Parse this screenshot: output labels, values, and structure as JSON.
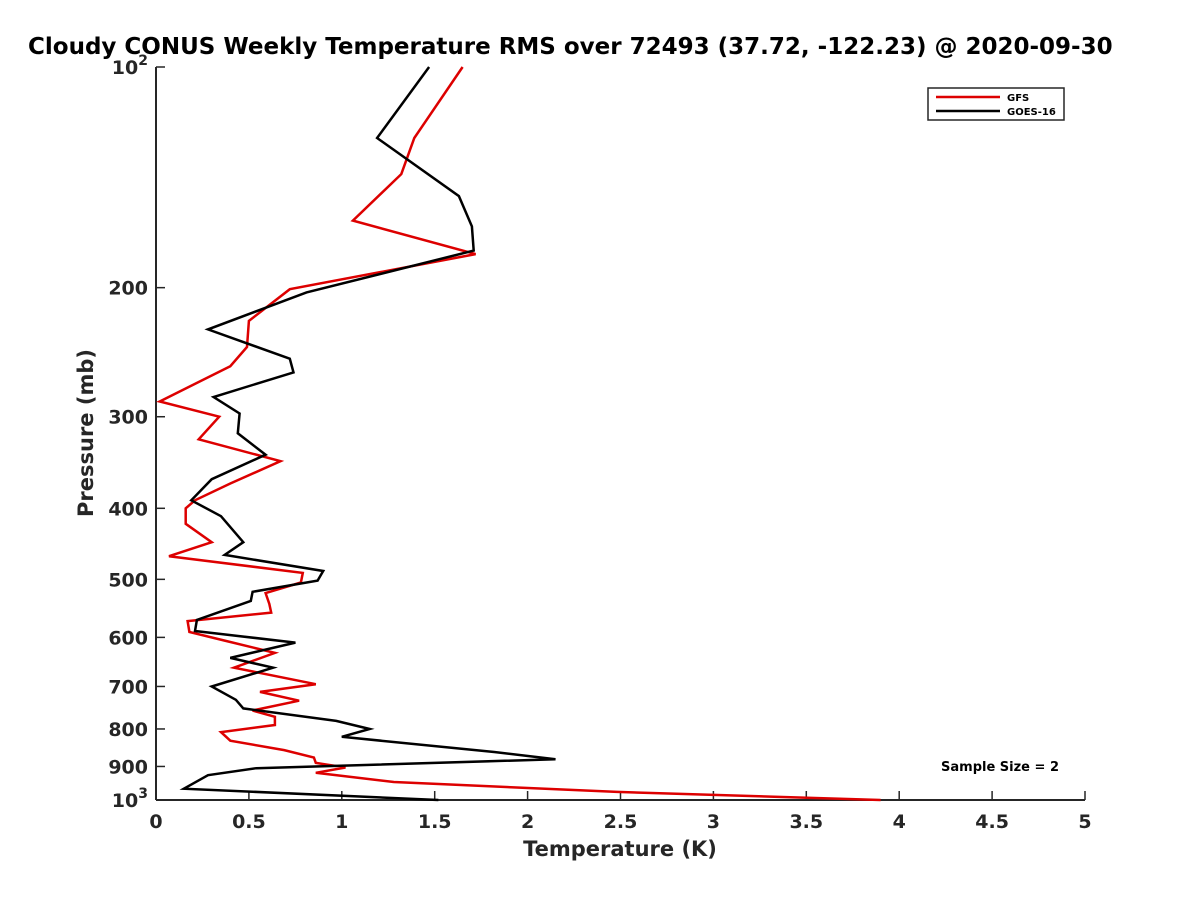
{
  "chart_data": {
    "type": "line",
    "title": "Cloudy CONUS Weekly Temperature RMS over 72493 (37.72, -122.23) @ 2020-09-30",
    "xlabel": "Temperature (K)",
    "ylabel": "Pressure (mb)",
    "xlim": [
      0,
      5
    ],
    "ylim": [
      100,
      1000
    ],
    "y_scale": "log",
    "y_direction": "reversed",
    "x_ticks": [
      "0",
      "0.5",
      "1",
      "1.5",
      "2",
      "2.5",
      "3",
      "3.5",
      "4",
      "4.5",
      "5"
    ],
    "y_ticks": [
      {
        "value": 100,
        "base": "10",
        "exp": "2"
      },
      {
        "value": 200,
        "label": "200"
      },
      {
        "value": 300,
        "label": "300"
      },
      {
        "value": 400,
        "label": "400"
      },
      {
        "value": 500,
        "label": "500"
      },
      {
        "value": 600,
        "label": "600"
      },
      {
        "value": 700,
        "label": "700"
      },
      {
        "value": 800,
        "label": "800"
      },
      {
        "value": 900,
        "label": "900"
      },
      {
        "value": 1000,
        "base": "10",
        "exp": "3"
      }
    ],
    "grid": false,
    "legend_position": "top-right",
    "annotation": "Sample Size = 2",
    "series": [
      {
        "name": "GFS",
        "color": "#dd0000",
        "points": [
          [
            1.65,
            100
          ],
          [
            1.39,
            125
          ],
          [
            1.32,
            140
          ],
          [
            1.06,
            162
          ],
          [
            1.72,
            180
          ],
          [
            0.72,
            201
          ],
          [
            0.5,
            222
          ],
          [
            0.49,
            241
          ],
          [
            0.4,
            256
          ],
          [
            0.02,
            286
          ],
          [
            0.34,
            300
          ],
          [
            0.23,
            322
          ],
          [
            0.67,
            345
          ],
          [
            0.4,
            370
          ],
          [
            0.21,
            390
          ],
          [
            0.16,
            400
          ],
          [
            0.16,
            420
          ],
          [
            0.3,
            445
          ],
          [
            0.07,
            465
          ],
          [
            0.79,
            490
          ],
          [
            0.78,
            505
          ],
          [
            0.59,
            522
          ],
          [
            0.61,
            540
          ],
          [
            0.62,
            555
          ],
          [
            0.17,
            570
          ],
          [
            0.18,
            590
          ],
          [
            0.37,
            606
          ],
          [
            0.64,
            630
          ],
          [
            0.42,
            660
          ],
          [
            0.86,
            695
          ],
          [
            0.56,
            712
          ],
          [
            0.77,
            732
          ],
          [
            0.52,
            755
          ],
          [
            0.64,
            770
          ],
          [
            0.64,
            790
          ],
          [
            0.35,
            808
          ],
          [
            0.4,
            830
          ],
          [
            0.69,
            855
          ],
          [
            0.85,
            875
          ],
          [
            0.86,
            890
          ],
          [
            1.02,
            903
          ],
          [
            0.86,
            918
          ],
          [
            1.28,
            945
          ],
          [
            2.48,
            975
          ],
          [
            3.9,
            1000
          ]
        ]
      },
      {
        "name": "GOES-16",
        "color": "#000000",
        "points": [
          [
            1.47,
            100
          ],
          [
            1.19,
            125
          ],
          [
            1.63,
            150
          ],
          [
            1.7,
            165
          ],
          [
            1.71,
            178
          ],
          [
            0.81,
            203
          ],
          [
            0.28,
            228
          ],
          [
            0.72,
            250
          ],
          [
            0.74,
            261
          ],
          [
            0.31,
            282
          ],
          [
            0.45,
            297
          ],
          [
            0.44,
            316
          ],
          [
            0.59,
            338
          ],
          [
            0.3,
            365
          ],
          [
            0.19,
            390
          ],
          [
            0.35,
            410
          ],
          [
            0.47,
            445
          ],
          [
            0.37,
            463
          ],
          [
            0.9,
            487
          ],
          [
            0.87,
            502
          ],
          [
            0.52,
            520
          ],
          [
            0.51,
            535
          ],
          [
            0.22,
            568
          ],
          [
            0.21,
            588
          ],
          [
            0.75,
            610
          ],
          [
            0.4,
            640
          ],
          [
            0.63,
            660
          ],
          [
            0.3,
            700
          ],
          [
            0.43,
            730
          ],
          [
            0.47,
            750
          ],
          [
            0.97,
            780
          ],
          [
            1.15,
            800
          ],
          [
            1.0,
            820
          ],
          [
            1.82,
            860
          ],
          [
            2.15,
            880
          ],
          [
            0.54,
            905
          ],
          [
            0.28,
            925
          ],
          [
            0.15,
            965
          ],
          [
            1.52,
            1000
          ]
        ]
      }
    ]
  }
}
